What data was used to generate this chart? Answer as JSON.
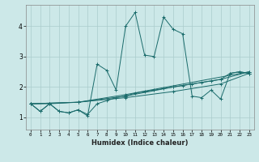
{
  "xlabel": "Humidex (Indice chaleur)",
  "ylabel": "",
  "background_color": "#cce8e8",
  "grid_color": "#aacccc",
  "line_color": "#1a6b6b",
  "xlim": [
    -0.5,
    23.5
  ],
  "ylim": [
    0.6,
    4.7
  ],
  "yticks": [
    1,
    2,
    3,
    4
  ],
  "xticks": [
    0,
    1,
    2,
    3,
    4,
    5,
    6,
    7,
    8,
    9,
    10,
    11,
    12,
    13,
    14,
    15,
    16,
    17,
    18,
    19,
    20,
    21,
    22,
    23
  ],
  "lines": [
    [
      0,
      1.45,
      1,
      1.2,
      2,
      1.45,
      3,
      1.2,
      4,
      1.15,
      5,
      1.25,
      6,
      1.05,
      7,
      2.75,
      8,
      2.55,
      9,
      1.9,
      10,
      4.0,
      11,
      4.45,
      12,
      3.05,
      13,
      3.0,
      14,
      4.3,
      15,
      3.9,
      16,
      3.75,
      17,
      1.7,
      18,
      1.65,
      19,
      1.9,
      20,
      1.6,
      21,
      2.45,
      22,
      2.5,
      23,
      2.45
    ],
    [
      0,
      1.45,
      1,
      1.2,
      2,
      1.45,
      3,
      1.2,
      4,
      1.15,
      5,
      1.25,
      6,
      1.1,
      7,
      1.45,
      8,
      1.55,
      9,
      1.65,
      10,
      1.7,
      11,
      1.8,
      12,
      1.85,
      13,
      1.9,
      14,
      1.95,
      15,
      2.0,
      16,
      2.05,
      17,
      2.1,
      18,
      2.15,
      19,
      2.2,
      20,
      2.25,
      21,
      2.45,
      22,
      2.5,
      23,
      2.45
    ],
    [
      0,
      1.45,
      2,
      1.45,
      5,
      1.5,
      10,
      1.65,
      15,
      1.85,
      20,
      2.1,
      23,
      2.45
    ],
    [
      0,
      1.45,
      5,
      1.5,
      10,
      1.7,
      15,
      2.0,
      20,
      2.25,
      23,
      2.5
    ],
    [
      0,
      1.45,
      5,
      1.5,
      10,
      1.75,
      23,
      2.5
    ]
  ]
}
